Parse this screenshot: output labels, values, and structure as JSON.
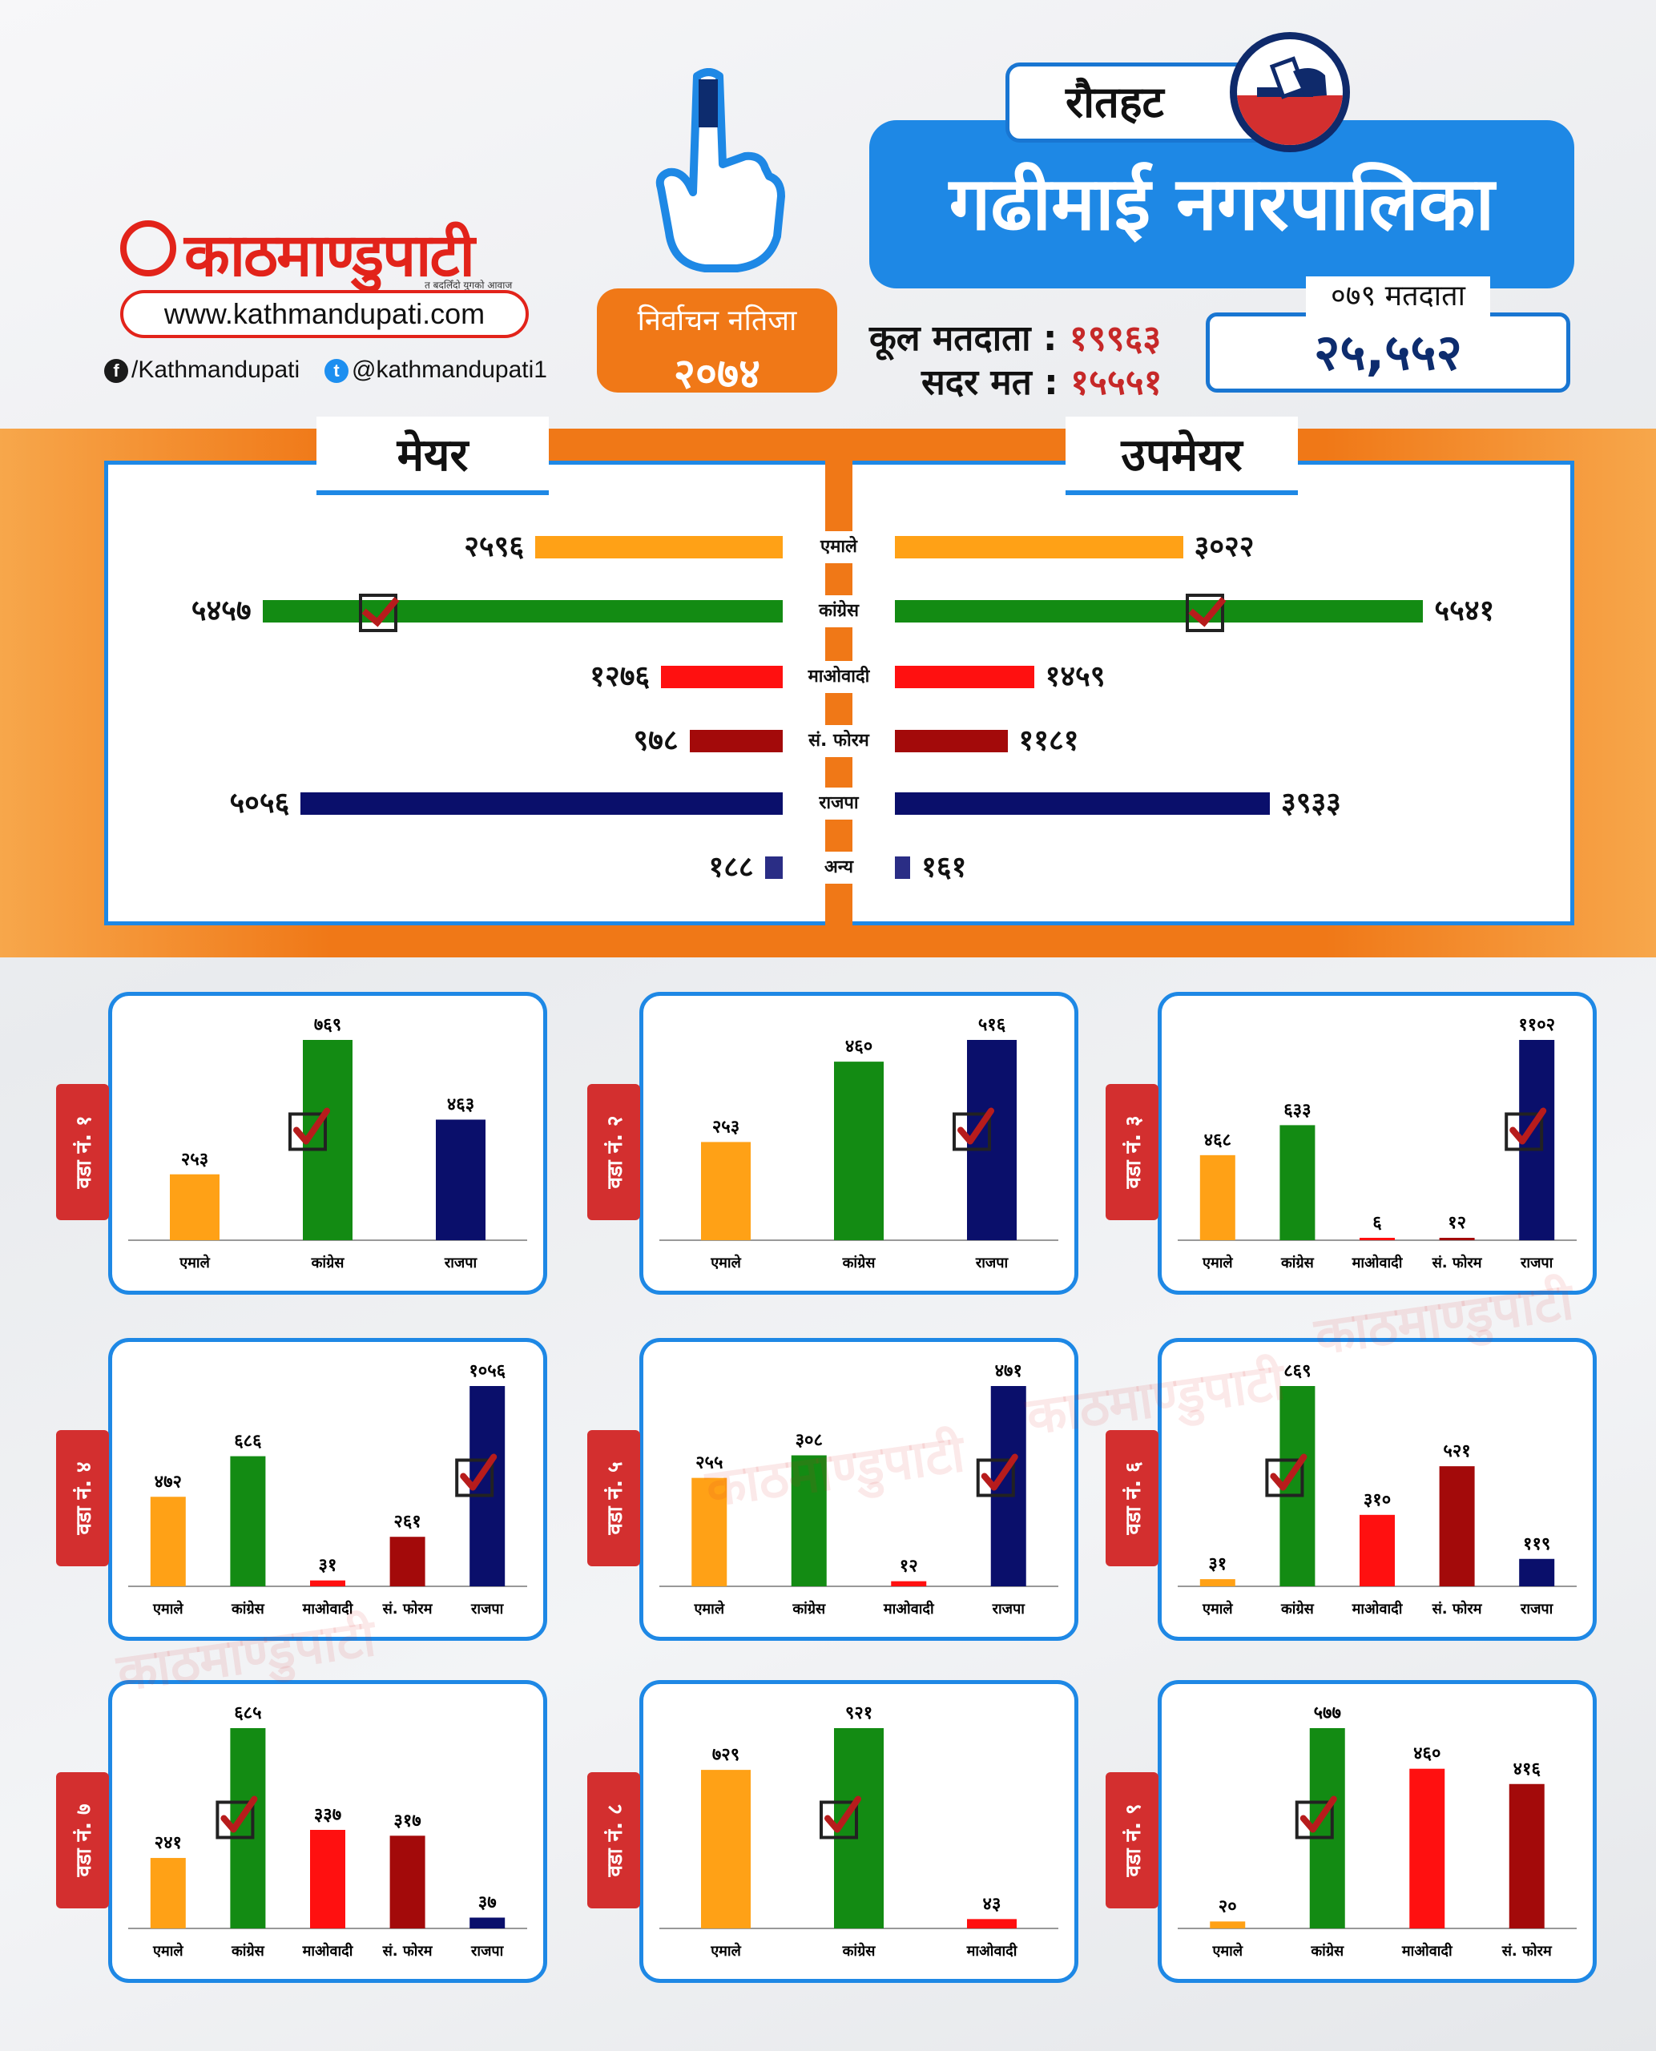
{
  "brand": {
    "logo_text": "काठमाण्डुपाटी",
    "tagline": "त बदलिँदो युगको आवाज",
    "url": "www.kathmandupati.com",
    "facebook": "/Kathmandupati",
    "twitter": "@kathmandupati1"
  },
  "badge": {
    "line1": "निर्वाचन नतिजा",
    "line2": "२०७४"
  },
  "header": {
    "district": "रौतहट",
    "municipality": "गढीमाई  नगरपालिका",
    "total_voters_label": "कूल मतदाता :",
    "total_voters_value": "१९९६३",
    "valid_votes_label": "सदर मत :",
    "valid_votes_value": "१५५५१",
    "voters_079_label": "०७९ मतदाता",
    "voters_079_value": "२५,५५२"
  },
  "colors": {
    "एमाले": "#ffa116",
    "कांग्रेस": "#138b13",
    "माओवादी": "#ff1010",
    "सं. फोरम": "#a30a0a",
    "राजपा": "#0a0f6b",
    "अन्य": "#2a2d85"
  },
  "chart_data": [
    {
      "type": "bar",
      "orientation": "horizontal-butterfly",
      "left_title": "मेयर",
      "right_title": "उपमेयर",
      "categories": [
        "एमाले",
        "कांग्रेस",
        "माओवादी",
        "सं. फोरम",
        "राजपा",
        "अन्य"
      ],
      "series": [
        {
          "name": "मेयर",
          "values": [
            2596,
            5457,
            1276,
            978,
            5056,
            188
          ],
          "labels": [
            "२५९६",
            "५४५७",
            "१२७६",
            "९७८",
            "५०५६",
            "१८८"
          ],
          "winner": "कांग्रेस"
        },
        {
          "name": "उपमेयर",
          "values": [
            3022,
            5541,
            1459,
            1181,
            3933,
            161
          ],
          "labels": [
            "३०२२",
            "५५४१",
            "१४५९",
            "११८१",
            "३९३३",
            "१६१"
          ],
          "winner": "कांग्रेस"
        }
      ]
    },
    {
      "type": "bar",
      "ward": "वडा नं. १",
      "categories": [
        "एमाले",
        "कांग्रेस",
        "राजपा"
      ],
      "values": [
        253,
        769,
        463
      ],
      "labels": [
        "२५३",
        "७६९",
        "४६३"
      ],
      "winner": "कांग्रेस"
    },
    {
      "type": "bar",
      "ward": "वडा नं. २",
      "categories": [
        "एमाले",
        "कांग्रेस",
        "राजपा"
      ],
      "values": [
        253,
        460,
        516
      ],
      "labels": [
        "२५३",
        "४६०",
        "५१६"
      ],
      "winner": "राजपा"
    },
    {
      "type": "bar",
      "ward": "वडा नं. ३",
      "categories": [
        "एमाले",
        "कांग्रेस",
        "माओवादी",
        "सं. फोरम",
        "राजपा"
      ],
      "values": [
        468,
        633,
        6,
        12,
        1102
      ],
      "labels": [
        "४६८",
        "६३३",
        "६",
        "१२",
        "११०२"
      ],
      "winner": "राजपा"
    },
    {
      "type": "bar",
      "ward": "वडा नं. ४",
      "categories": [
        "एमाले",
        "कांग्रेस",
        "माओवादी",
        "सं. फोरम",
        "राजपा"
      ],
      "values": [
        472,
        686,
        31,
        261,
        1056
      ],
      "labels": [
        "४७२",
        "६८६",
        "३१",
        "२६१",
        "१०५६"
      ],
      "winner": "राजपा"
    },
    {
      "type": "bar",
      "ward": "वडा नं. ५",
      "categories": [
        "एमाले",
        "कांग्रेस",
        "माओवादी",
        "राजपा"
      ],
      "values": [
        255,
        308,
        12,
        471
      ],
      "labels": [
        "२५५",
        "३०८",
        "१२",
        "४७१"
      ],
      "winner": "राजपा"
    },
    {
      "type": "bar",
      "ward": "वडा नं. ६",
      "categories": [
        "एमाले",
        "कांग्रेस",
        "माओवादी",
        "सं. फोरम",
        "राजपा"
      ],
      "values": [
        31,
        869,
        310,
        521,
        119
      ],
      "labels": [
        "३१",
        "८६९",
        "३१०",
        "५२१",
        "११९"
      ],
      "winner": "कांग्रेस"
    },
    {
      "type": "bar",
      "ward": "वडा नं. ७",
      "categories": [
        "एमाले",
        "कांग्रेस",
        "माओवादी",
        "सं. फोरम",
        "राजपा"
      ],
      "values": [
        241,
        685,
        337,
        317,
        37
      ],
      "labels": [
        "२४१",
        "६८५",
        "३३७",
        "३१७",
        "३७"
      ],
      "winner": "कांग्रेस"
    },
    {
      "type": "bar",
      "ward": "वडा नं. ८",
      "categories": [
        "एमाले",
        "कांग्रेस",
        "माओवादी"
      ],
      "values": [
        729,
        921,
        43
      ],
      "labels": [
        "७२९",
        "९२१",
        "४३"
      ],
      "winner": "कांग्रेस"
    },
    {
      "type": "bar",
      "ward": "वडा नं. ९",
      "categories": [
        "एमाले",
        "कांग्रेस",
        "माओवादी",
        "सं. फोरम"
      ],
      "values": [
        20,
        577,
        460,
        416
      ],
      "labels": [
        "२०",
        "५७७",
        "४६०",
        "४१६"
      ],
      "winner": "कांग्रेस"
    }
  ]
}
